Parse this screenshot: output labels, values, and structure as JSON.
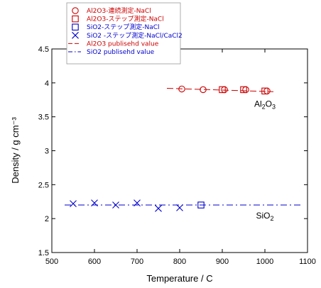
{
  "chart_data": {
    "type": "scatter",
    "xlabel": "Temperature / C",
    "ylabel": "Density / g cm⁻³",
    "xlim": [
      500,
      1100
    ],
    "ylim": [
      1.5,
      4.5
    ],
    "xticks": [
      "500",
      "600",
      "700",
      "800",
      "900",
      "1000",
      "1100"
    ],
    "yticks": [
      "1.5",
      "2",
      "2.5",
      "3",
      "3.5",
      "4",
      "4.5"
    ],
    "legend_position": "top-left",
    "series": [
      {
        "name": "Al2O3-連続測定-NaCl",
        "marker": "circle",
        "color": "#cc0000",
        "x": [
          805,
          855,
          905,
          955,
          1005
        ],
        "y": [
          3.91,
          3.9,
          3.9,
          3.9,
          3.88
        ]
      },
      {
        "name": "Al2O3-ステップ測定-NaCl",
        "marker": "square",
        "color": "#cc0000",
        "x": [
          900,
          950,
          1000
        ],
        "y": [
          3.9,
          3.9,
          3.88
        ]
      },
      {
        "name": "SiO2-ステップ測定-NaCl",
        "marker": "square",
        "color": "#0000cc",
        "x": [
          850
        ],
        "y": [
          2.2
        ]
      },
      {
        "name": "SiO2 -ステップ測定-NaCl/CaCl2",
        "marker": "x",
        "color": "#0000cc",
        "x": [
          550,
          600,
          650,
          700,
          750,
          800
        ],
        "y": [
          2.22,
          2.23,
          2.2,
          2.23,
          2.15,
          2.16
        ]
      },
      {
        "name": "Al2O3 publisehd value",
        "marker": "dashed-line",
        "color": "#cc0000",
        "x": [
          770,
          1020
        ],
        "y": [
          3.92,
          3.87
        ]
      },
      {
        "name": "SiO2 publisehd value",
        "marker": "dashdot-line",
        "color": "#0000cc",
        "x": [
          530,
          1090
        ],
        "y": [
          2.2,
          2.2
        ]
      }
    ],
    "annotations": [
      {
        "text_base": "Al",
        "sub1": "2",
        "text_mid": "O",
        "sub2": "3",
        "x": 1000,
        "y": 3.65
      },
      {
        "text_base": "SiO",
        "sub1": "2",
        "text_mid": "",
        "sub2": "",
        "x": 1000,
        "y": 2.0
      }
    ]
  }
}
